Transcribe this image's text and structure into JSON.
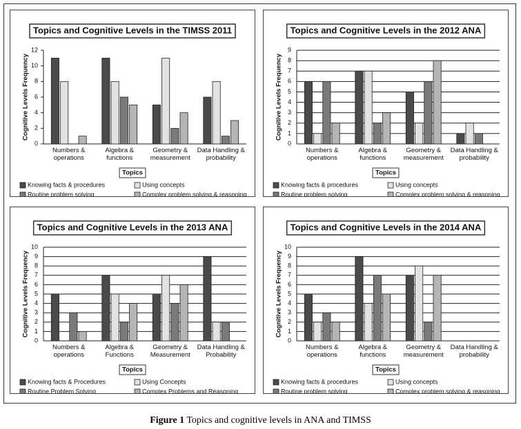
{
  "chart_data": [
    {
      "type": "bar",
      "title": "Topics and Cognitive Levels in the TIMSS 2011",
      "y_label": "Cognitive Levels Frequency",
      "x_label": "Topics",
      "categories": [
        "Numbers & operations",
        "Algebra & functions",
        "Geometry & measurement",
        "Data Handling & probability"
      ],
      "series": [
        {
          "name": "Knowing facts & procedures",
          "color": "#4a4a4a",
          "values": [
            11,
            11,
            5,
            6
          ]
        },
        {
          "name": "Using concepts",
          "color": "#e2e2e2",
          "values": [
            8,
            8,
            11,
            8
          ]
        },
        {
          "name": "Routine problem solving",
          "color": "#7a7a7a",
          "values": [
            0,
            6,
            2,
            1
          ]
        },
        {
          "name": "Complex problem solving & reasoning",
          "color": "#b5b5b5",
          "values": [
            1,
            5,
            4,
            3
          ]
        }
      ],
      "ylim": [
        0,
        12
      ],
      "yticks": [
        0,
        2,
        4,
        6,
        8,
        10,
        12
      ],
      "grid": false,
      "legend": "bottom"
    },
    {
      "type": "bar",
      "title": "Topics and Cognitive Levels in the 2012 ANA",
      "y_label": "Cognitive Levels Frequency",
      "x_label": "Topics",
      "categories": [
        "Numbers & operations",
        "Algebra & functions",
        "Geometry & measurement",
        "Data Handling & probability"
      ],
      "series": [
        {
          "name": "Knowing facts & procedures",
          "color": "#4a4a4a",
          "values": [
            6,
            7,
            5,
            1
          ]
        },
        {
          "name": "Using concepts",
          "color": "#e2e2e2",
          "values": [
            1,
            7,
            2,
            2
          ]
        },
        {
          "name": "Routine problem solving",
          "color": "#7a7a7a",
          "values": [
            6,
            2,
            6,
            1
          ]
        },
        {
          "name": "Complex problem solving & reasoning",
          "color": "#b5b5b5",
          "values": [
            2,
            3,
            8,
            0
          ]
        }
      ],
      "ylim": [
        0,
        9
      ],
      "yticks": [
        0,
        1,
        2,
        3,
        4,
        5,
        6,
        7,
        8,
        9
      ],
      "grid": true,
      "legend": "bottom"
    },
    {
      "type": "bar",
      "title": "Topics and Cognitive Levels in the 2013 ANA",
      "y_label": "Cognitive Levels Frequency",
      "x_label": "Topics",
      "categories": [
        "Numbers & operations",
        "Algebra & Functions",
        "Geometry & Measurement",
        "Data Handling & Probability"
      ],
      "series": [
        {
          "name": "Knowing facts & Procedures",
          "color": "#4a4a4a",
          "values": [
            5,
            7,
            5,
            9
          ]
        },
        {
          "name": "Using Concepts",
          "color": "#e2e2e2",
          "values": [
            0,
            5,
            7,
            2
          ]
        },
        {
          "name": "Routine Problem Solving",
          "color": "#7a7a7a",
          "values": [
            3,
            2,
            4,
            2
          ]
        },
        {
          "name": "Complex Problems and Reasoning",
          "color": "#b5b5b5",
          "values": [
            1,
            4,
            6,
            0
          ]
        }
      ],
      "ylim": [
        0,
        10
      ],
      "yticks": [
        0,
        1,
        2,
        3,
        4,
        5,
        6,
        7,
        8,
        9,
        10
      ],
      "grid": true,
      "legend": "bottom"
    },
    {
      "type": "bar",
      "title": "Topics and Cognitive Levels in the 2014 ANA",
      "y_label": "Cognitive Levels Frequency",
      "x_label": "Topics",
      "categories": [
        "Numbers & operations",
        "Algebra & functions",
        "Geometry & measurement",
        "Data Handling & probability"
      ],
      "series": [
        {
          "name": "Knowing facts & procedures",
          "color": "#4a4a4a",
          "values": [
            5,
            9,
            7,
            0
          ]
        },
        {
          "name": "Using concepts",
          "color": "#e2e2e2",
          "values": [
            2,
            4,
            8,
            0
          ]
        },
        {
          "name": "Routine problem solving",
          "color": "#7a7a7a",
          "values": [
            3,
            7,
            2,
            0
          ]
        },
        {
          "name": "Complex problem solving & reasoning",
          "color": "#b5b5b5",
          "values": [
            2,
            5,
            7,
            0
          ]
        }
      ],
      "ylim": [
        0,
        10
      ],
      "yticks": [
        0,
        1,
        2,
        3,
        4,
        5,
        6,
        7,
        8,
        9,
        10
      ],
      "grid": true,
      "legend": "bottom"
    }
  ],
  "caption": {
    "label": "Figure 1",
    "text": "Topics and cognitive levels in ANA and TIMSS"
  }
}
